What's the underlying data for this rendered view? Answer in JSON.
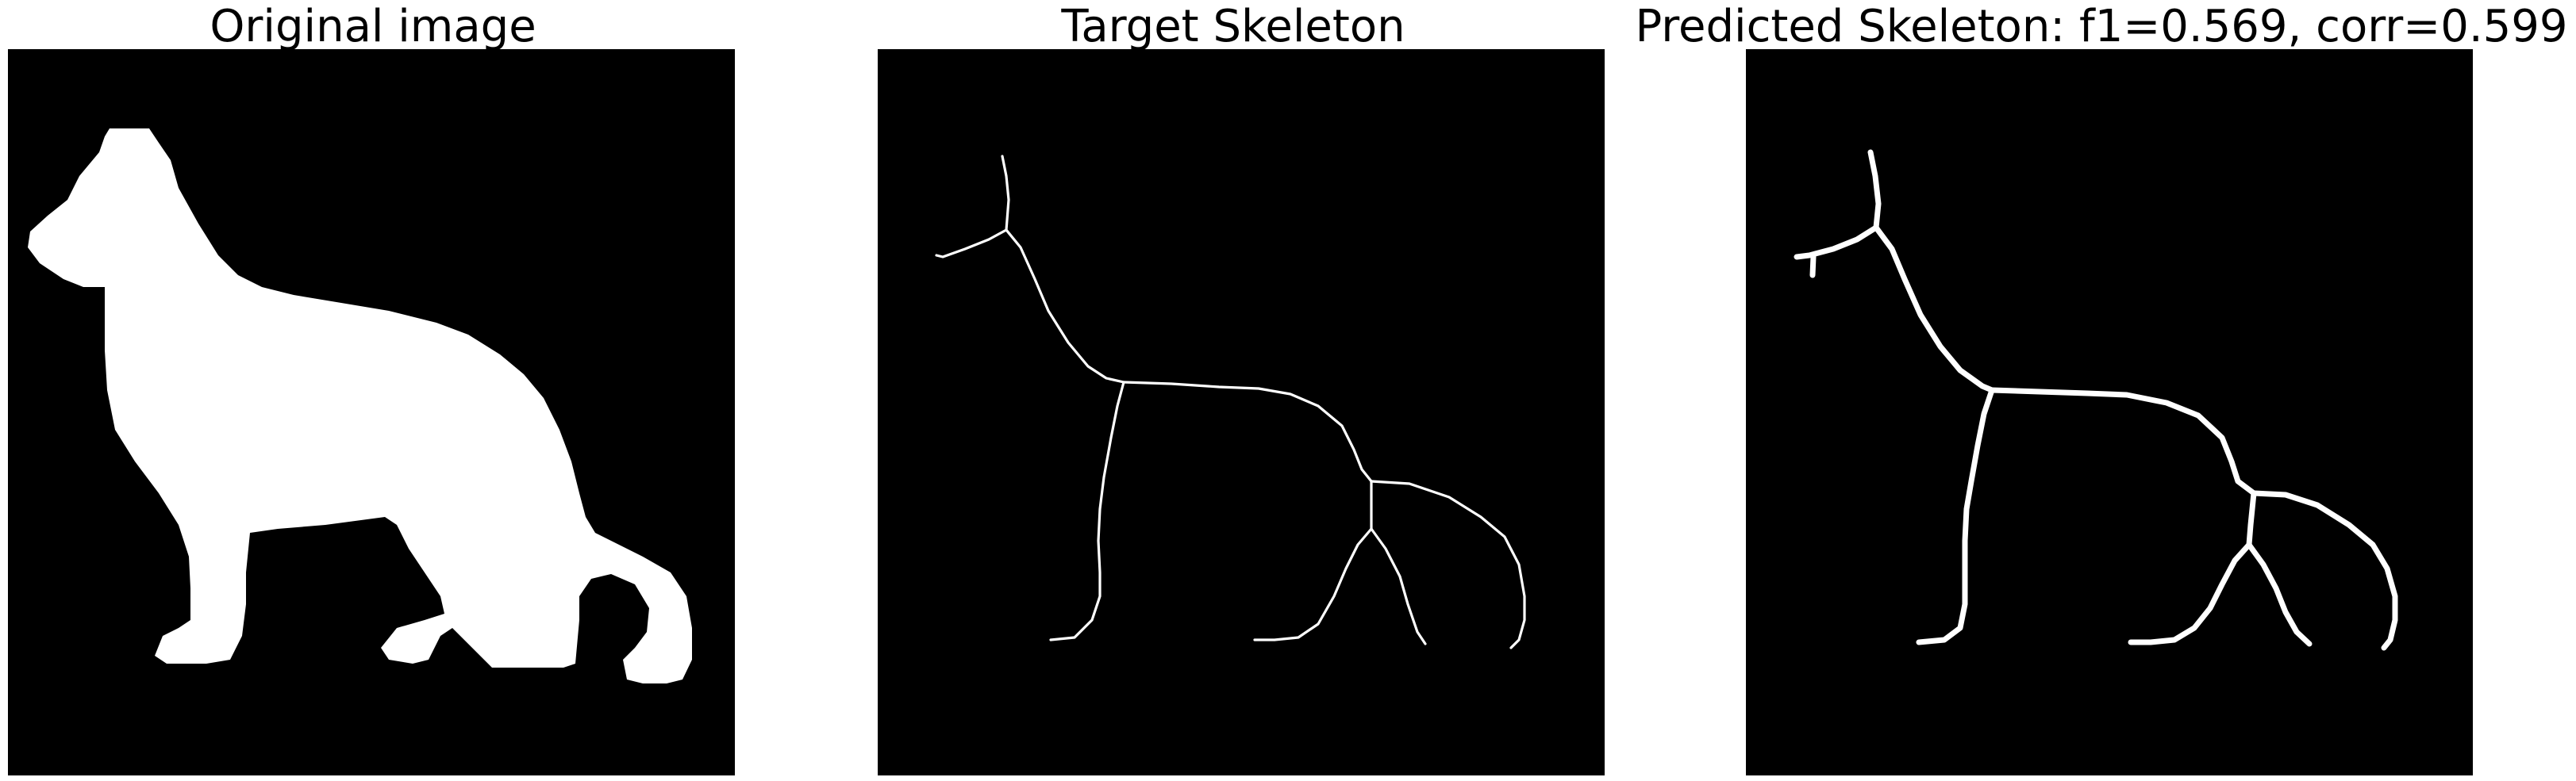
{
  "panels": [
    {
      "title": "Original image",
      "kind": "binary-silhouette"
    },
    {
      "title": "Target Skeleton",
      "kind": "thin-skeleton"
    },
    {
      "title": "Predicted Skeleton: f1=0.569, corr=0.599",
      "kind": "thick-skeleton"
    }
  ],
  "colors": {
    "background": "#000000",
    "foreground": "#ffffff",
    "page": "#ffffff"
  }
}
